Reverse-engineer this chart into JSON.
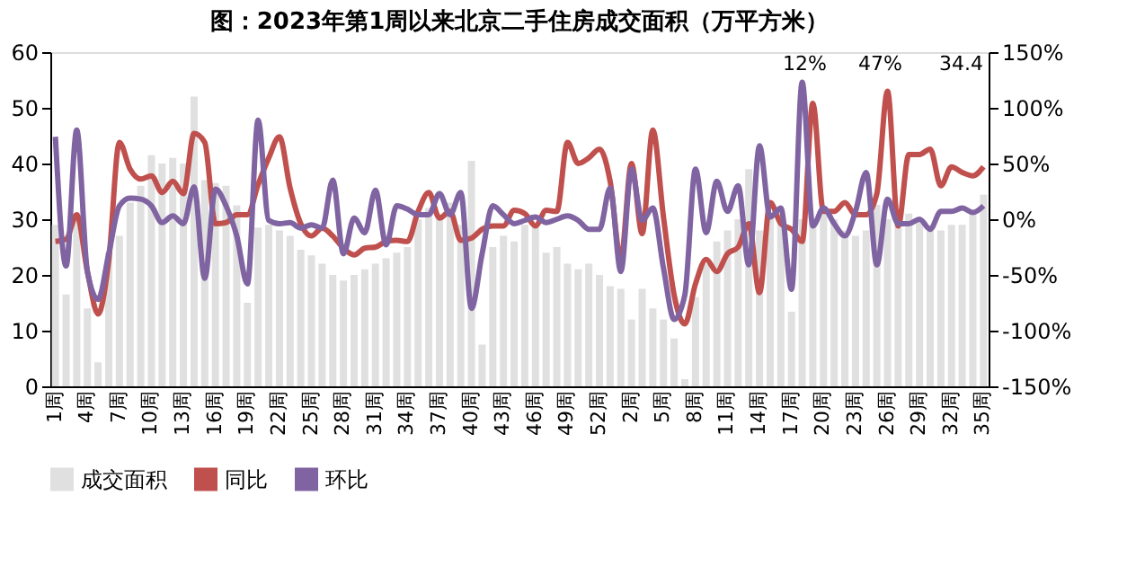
{
  "chart_data": {
    "type": "bar",
    "title": "图：2023年第1周以来北京二手住房成交面积（万平方米）",
    "categories": [
      "1周",
      null,
      null,
      "4周",
      null,
      null,
      "7周",
      null,
      null,
      "10周",
      null,
      null,
      "13周",
      null,
      null,
      "16周",
      null,
      null,
      "19周",
      null,
      null,
      "22周",
      null,
      null,
      "25周",
      null,
      null,
      "28周",
      null,
      null,
      "31周",
      null,
      null,
      "34周",
      null,
      null,
      "37周",
      null,
      null,
      "40周",
      null,
      null,
      "43周",
      null,
      null,
      "46周",
      null,
      null,
      "49周",
      null,
      null,
      "52周",
      null,
      null,
      "2周",
      null,
      null,
      "5周",
      null,
      null,
      "8周",
      null,
      null,
      "11周",
      null,
      null,
      "14周",
      null,
      null,
      "17周",
      null,
      null,
      "20周",
      null,
      null,
      "23周",
      null,
      null,
      "26周",
      null,
      null,
      "29周",
      null,
      null,
      "32周",
      null,
      null,
      "35周"
    ],
    "series": [
      {
        "name": "成交面积",
        "color": "#e0e0e0",
        "values": [
          29,
          16.5,
          30,
          14,
          4.3,
          24,
          27,
          33,
          36,
          41.5,
          40,
          41,
          40,
          52,
          37,
          36.5,
          36,
          32.5,
          15,
          28.5,
          29,
          28,
          27,
          24.5,
          23.5,
          22,
          20,
          19,
          20,
          21,
          22,
          23,
          24,
          25,
          30,
          32,
          30,
          33,
          29,
          40.5,
          7.5,
          25,
          27,
          26,
          29,
          29,
          24,
          25,
          22,
          21,
          22,
          20,
          18,
          17.5,
          12,
          17.5,
          14,
          12,
          8.6,
          1.3,
          16,
          22,
          26,
          28,
          30,
          39,
          28,
          31,
          30,
          13.4,
          30,
          30,
          31,
          30,
          28,
          27,
          28,
          32.6,
          30,
          29,
          31,
          30,
          28,
          28,
          29,
          29,
          31,
          34.4
        ]
      },
      {
        "name": "同比",
        "type": "line",
        "axis": "y2",
        "color": "#c0504d",
        "values": [
          -20,
          -18,
          4,
          -47,
          -85,
          -37,
          69,
          45,
          36,
          39,
          24,
          34,
          23,
          77,
          69,
          -4,
          -3,
          4,
          4,
          31,
          55,
          74,
          28,
          -4,
          -15,
          -8,
          -15,
          -26,
          -32,
          -26,
          -25,
          -20,
          -19,
          -20,
          7,
          24,
          1,
          7,
          -19,
          -17,
          -9,
          -6,
          -6,
          8,
          5,
          -6,
          8,
          7,
          69,
          50,
          55,
          63,
          34,
          -36,
          50,
          -13,
          80,
          2,
          -68,
          -94,
          -58,
          -36,
          -47,
          -31,
          -25,
          -4,
          -66,
          15,
          -4,
          -9,
          -20,
          104,
          7,
          7,
          15,
          4,
          4,
          23,
          115,
          -6,
          58,
          58,
          63,
          30,
          47,
          42,
          39,
          47
        ]
      },
      {
        "name": "环比",
        "type": "line",
        "axis": "y2",
        "color": "#8064a2",
        "values": [
          74,
          -42,
          80,
          -47,
          -72,
          -31,
          12,
          19,
          18,
          12,
          -3,
          3,
          -4,
          29,
          -53,
          27,
          12,
          -15,
          -58,
          89,
          -1,
          -4,
          -3,
          -8,
          -5,
          -8,
          35,
          -31,
          1,
          -12,
          26,
          -23,
          12,
          9,
          4,
          4,
          23,
          4,
          24,
          -80,
          -31,
          12,
          4,
          -4,
          -1,
          2,
          -3,
          0,
          3,
          -1,
          -9,
          -9,
          28,
          -47,
          45,
          -1,
          10,
          -44,
          -90,
          -68,
          45,
          -12,
          34,
          7,
          30,
          -41,
          66,
          2,
          10,
          -63,
          123,
          -6,
          10,
          -4,
          -15,
          7,
          42,
          -41,
          18,
          -4,
          -4,
          0,
          -9,
          7,
          7,
          10,
          6,
          12
        ]
      }
    ],
    "ylim": [
      0,
      60
    ],
    "yticks": [
      0,
      10,
      20,
      30,
      40,
      50,
      60
    ],
    "y2lim": [
      -150,
      150
    ],
    "y2ticks": [
      {
        "value": -150,
        "label": "-150%"
      },
      {
        "value": -100,
        "label": "-100%"
      },
      {
        "value": -50,
        "label": "-50%"
      },
      {
        "value": 0,
        "label": "0%"
      },
      {
        "value": 50,
        "label": "50%"
      },
      {
        "value": 100,
        "label": "100%"
      },
      {
        "value": 150,
        "label": "150%"
      }
    ],
    "annotations": [
      "34.4",
      "47%",
      "12%"
    ],
    "legend": "bottom",
    "grid": false
  }
}
